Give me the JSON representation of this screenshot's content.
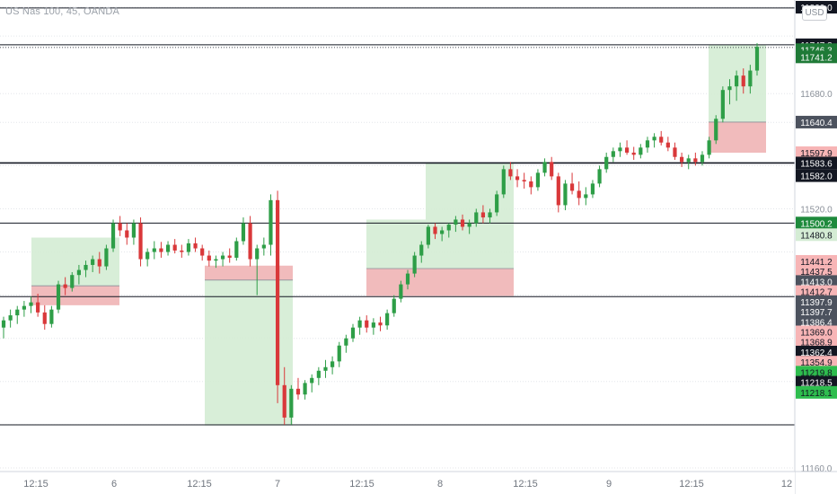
{
  "symbol_text": "US Nas 100, 45, OANDA",
  "currency_label": "USD",
  "chart_data": {
    "type": "candlestick",
    "title": "US Nas 100, 45, OANDA",
    "currency": "USD",
    "ylim": [
      11155,
      11810
    ],
    "y_ticks": [
      11160.0,
      11220.0,
      11280.0,
      11340.0,
      11400.0,
      11460.0,
      11520.0,
      11580.0,
      11640.0,
      11680.0,
      11760.0,
      11800.0
    ],
    "x_labels": [
      {
        "t": 40,
        "label": "12:15"
      },
      {
        "t": 127,
        "label": "6"
      },
      {
        "t": 222,
        "label": "12:15"
      },
      {
        "t": 309,
        "label": "7"
      },
      {
        "t": 403,
        "label": "12:15"
      },
      {
        "t": 490,
        "label": "8"
      },
      {
        "t": 585,
        "label": "12:15"
      },
      {
        "t": 678,
        "label": "9"
      },
      {
        "t": 770,
        "label": "12:15"
      },
      {
        "t": 876,
        "label": "12"
      }
    ],
    "colors": {
      "up": "#2e9e47",
      "down": "#d9383a",
      "reward_zone": "#d4ecd4",
      "risk_zone": "#f0b7b8"
    },
    "horizontal_levels": [
      11799,
      11747.8,
      11583.6,
      11500.2,
      11397.9,
      11219.8
    ],
    "position_boxes": [
      {
        "t0": 35,
        "t1": 133,
        "entry": 11413,
        "target": 11480,
        "stop": 11386
      },
      {
        "t0": 228,
        "t1": 268,
        "entry": 11421,
        "target": 11219,
        "stop": 11441,
        "reverse": true
      },
      {
        "t0": 268,
        "t1": 326,
        "entry": 11421,
        "target": 11219,
        "stop": 11441,
        "reverse": true
      },
      {
        "t0": 408,
        "t1": 474,
        "entry": 11437,
        "target": 11505,
        "stop": 11399
      },
      {
        "t0": 474,
        "t1": 572,
        "entry": 11437,
        "target": 11583,
        "stop": 11399
      },
      {
        "t0": 789,
        "t1": 853,
        "entry": 11640.4,
        "target": 11747.8,
        "stop": 11597.9
      }
    ],
    "price_labels": [
      {
        "value": "11800.0",
        "y": 11800,
        "bg": "#131722"
      },
      {
        "value": "11747.8",
        "y": 11747.8,
        "bg": "#131722"
      },
      {
        "value": "11746.3",
        "y": 11741,
        "bg": "#1f7a37"
      },
      {
        "value": "11741.2",
        "y": 11731,
        "bg": "#1f7a37"
      },
      {
        "value": "11680.0",
        "y": 11680,
        "bg": "none"
      },
      {
        "value": "11640.4",
        "y": 11640.4,
        "bg": "#4c525e"
      },
      {
        "value": "11597.9",
        "y": 11597.9,
        "bg": "#f7b5b6"
      },
      {
        "value": "11583.6",
        "y": 11583.6,
        "bg": "#131722"
      },
      {
        "value": "11582.0",
        "y": 11566,
        "bg": "#131722"
      },
      {
        "value": "11520.0",
        "y": 11520,
        "bg": "none"
      },
      {
        "value": "11500.2",
        "y": 11500.2,
        "bg": "#1e8a3c"
      },
      {
        "value": "11480.8",
        "y": 11484,
        "bg": "#d4ecd4"
      },
      {
        "value": "11441.2",
        "y": 11447,
        "bg": "#f7b5b6"
      },
      {
        "value": "11437.5",
        "y": 11433,
        "bg": "#f7b5b6"
      },
      {
        "value": "11413.0",
        "y": 11419,
        "bg": "#4c525e"
      },
      {
        "value": "11412.7",
        "y": 11405,
        "bg": "#f7b5b6"
      },
      {
        "value": "11397.9",
        "y": 11391,
        "bg": "#4c525e"
      },
      {
        "value": "11397.7",
        "y": 11377,
        "bg": "#4c525e"
      },
      {
        "value": "11386.4",
        "y": 11363,
        "bg": "#4c525e"
      },
      {
        "value": "11369.0",
        "y": 11349,
        "bg": "#f7b5b6"
      },
      {
        "value": "11368.9",
        "y": 11335,
        "bg": "#f7b5b6"
      },
      {
        "value": "11362.4",
        "y": 11321,
        "bg": "#131722"
      },
      {
        "value": "11354.9",
        "y": 11307,
        "bg": "#f7b5b6"
      },
      {
        "value": "11219.8",
        "y": 11293,
        "bg": "#2ebd4e"
      },
      {
        "value": "11218.5",
        "y": 11279,
        "bg": "#131722"
      },
      {
        "value": "11218.1",
        "y": 11265,
        "bg": "#2ebd4e"
      },
      {
        "value": "11160.0",
        "y": 11160,
        "bg": "none"
      }
    ],
    "candles": [
      [
        11355,
        11370,
        11340,
        11365
      ],
      [
        11365,
        11380,
        11355,
        11372
      ],
      [
        11372,
        11385,
        11360,
        11380
      ],
      [
        11380,
        11392,
        11370,
        11385
      ],
      [
        11385,
        11398,
        11375,
        11390
      ],
      [
        11390,
        11402,
        11370,
        11376
      ],
      [
        11376,
        11386,
        11352,
        11360
      ],
      [
        11360,
        11385,
        11355,
        11380
      ],
      [
        11380,
        11420,
        11375,
        11415
      ],
      [
        11415,
        11425,
        11400,
        11410
      ],
      [
        11410,
        11432,
        11405,
        11428
      ],
      [
        11428,
        11442,
        11415,
        11435
      ],
      [
        11435,
        11448,
        11425,
        11442
      ],
      [
        11442,
        11455,
        11432,
        11450
      ],
      [
        11450,
        11460,
        11430,
        11440
      ],
      [
        11440,
        11470,
        11435,
        11465
      ],
      [
        11465,
        11505,
        11460,
        11500
      ],
      [
        11500,
        11510,
        11482,
        11490
      ],
      [
        11490,
        11500,
        11470,
        11480
      ],
      [
        11480,
        11505,
        11470,
        11500
      ],
      [
        11500,
        11508,
        11440,
        11450
      ],
      [
        11450,
        11465,
        11440,
        11460
      ],
      [
        11460,
        11475,
        11450,
        11465
      ],
      [
        11465,
        11474,
        11452,
        11460
      ],
      [
        11460,
        11475,
        11455,
        11470
      ],
      [
        11470,
        11478,
        11458,
        11462
      ],
      [
        11462,
        11470,
        11452,
        11460
      ],
      [
        11460,
        11478,
        11455,
        11472
      ],
      [
        11472,
        11480,
        11460,
        11465
      ],
      [
        11465,
        11470,
        11448,
        11455
      ],
      [
        11455,
        11462,
        11440,
        11448
      ],
      [
        11448,
        11455,
        11438,
        11450
      ],
      [
        11450,
        11460,
        11440,
        11455
      ],
      [
        11455,
        11465,
        11445,
        11452
      ],
      [
        11452,
        11480,
        11448,
        11475
      ],
      [
        11475,
        11508,
        11470,
        11500
      ],
      [
        11500,
        11510,
        11440,
        11450
      ],
      [
        11450,
        11470,
        11400,
        11465
      ],
      [
        11465,
        11480,
        11455,
        11470
      ],
      [
        11470,
        11540,
        11455,
        11532
      ],
      [
        11532,
        11545,
        11250,
        11275
      ],
      [
        11275,
        11300,
        11220,
        11230
      ],
      [
        11230,
        11275,
        11220,
        11270
      ],
      [
        11270,
        11285,
        11255,
        11262
      ],
      [
        11262,
        11282,
        11255,
        11278
      ],
      [
        11278,
        11290,
        11265,
        11285
      ],
      [
        11285,
        11300,
        11275,
        11295
      ],
      [
        11295,
        11310,
        11285,
        11300
      ],
      [
        11300,
        11315,
        11290,
        11308
      ],
      [
        11308,
        11335,
        11300,
        11330
      ],
      [
        11330,
        11345,
        11320,
        11340
      ],
      [
        11340,
        11360,
        11335,
        11355
      ],
      [
        11355,
        11370,
        11345,
        11365
      ],
      [
        11365,
        11372,
        11348,
        11355
      ],
      [
        11355,
        11368,
        11345,
        11362
      ],
      [
        11362,
        11370,
        11350,
        11358
      ],
      [
        11358,
        11380,
        11352,
        11375
      ],
      [
        11375,
        11400,
        11370,
        11395
      ],
      [
        11395,
        11420,
        11390,
        11415
      ],
      [
        11415,
        11435,
        11408,
        11430
      ],
      [
        11430,
        11460,
        11425,
        11455
      ],
      [
        11455,
        11475,
        11445,
        11470
      ],
      [
        11470,
        11498,
        11465,
        11495
      ],
      [
        11495,
        11500,
        11478,
        11485
      ],
      [
        11485,
        11495,
        11475,
        11490
      ],
      [
        11490,
        11500,
        11480,
        11498
      ],
      [
        11498,
        11510,
        11488,
        11505
      ],
      [
        11505,
        11512,
        11490,
        11495
      ],
      [
        11495,
        11505,
        11485,
        11500
      ],
      [
        11500,
        11520,
        11495,
        11515
      ],
      [
        11515,
        11525,
        11500,
        11508
      ],
      [
        11508,
        11520,
        11500,
        11515
      ],
      [
        11515,
        11545,
        11510,
        11540
      ],
      [
        11540,
        11580,
        11535,
        11575
      ],
      [
        11575,
        11585,
        11560,
        11565
      ],
      [
        11565,
        11575,
        11550,
        11560
      ],
      [
        11560,
        11570,
        11548,
        11558
      ],
      [
        11558,
        11565,
        11540,
        11550
      ],
      [
        11550,
        11575,
        11545,
        11570
      ],
      [
        11570,
        11590,
        11565,
        11585
      ],
      [
        11585,
        11592,
        11560,
        11565
      ],
      [
        11565,
        11570,
        11515,
        11525
      ],
      [
        11525,
        11560,
        11518,
        11555
      ],
      [
        11555,
        11570,
        11540,
        11545
      ],
      [
        11545,
        11558,
        11525,
        11535
      ],
      [
        11535,
        11550,
        11525,
        11540
      ],
      [
        11540,
        11560,
        11535,
        11555
      ],
      [
        11555,
        11580,
        11550,
        11575
      ],
      [
        11575,
        11598,
        11570,
        11592
      ],
      [
        11592,
        11605,
        11585,
        11600
      ],
      [
        11600,
        11612,
        11592,
        11605
      ],
      [
        11605,
        11615,
        11595,
        11598
      ],
      [
        11598,
        11606,
        11588,
        11595
      ],
      [
        11595,
        11610,
        11590,
        11605
      ],
      [
        11605,
        11620,
        11598,
        11615
      ],
      [
        11615,
        11625,
        11605,
        11620
      ],
      [
        11620,
        11628,
        11608,
        11612
      ],
      [
        11612,
        11620,
        11600,
        11605
      ],
      [
        11605,
        11612,
        11588,
        11592
      ],
      [
        11592,
        11598,
        11578,
        11585
      ],
      [
        11585,
        11595,
        11575,
        11590
      ],
      [
        11590,
        11598,
        11580,
        11585
      ],
      [
        11585,
        11600,
        11580,
        11595
      ],
      [
        11595,
        11620,
        11590,
        11615
      ],
      [
        11615,
        11650,
        11610,
        11645
      ],
      [
        11645,
        11690,
        11640,
        11685
      ],
      [
        11685,
        11700,
        11665,
        11690
      ],
      [
        11690,
        11712,
        11670,
        11705
      ],
      [
        11705,
        11715,
        11680,
        11690
      ],
      [
        11690,
        11720,
        11680,
        11712
      ],
      [
        11712,
        11750,
        11705,
        11745
      ]
    ]
  }
}
